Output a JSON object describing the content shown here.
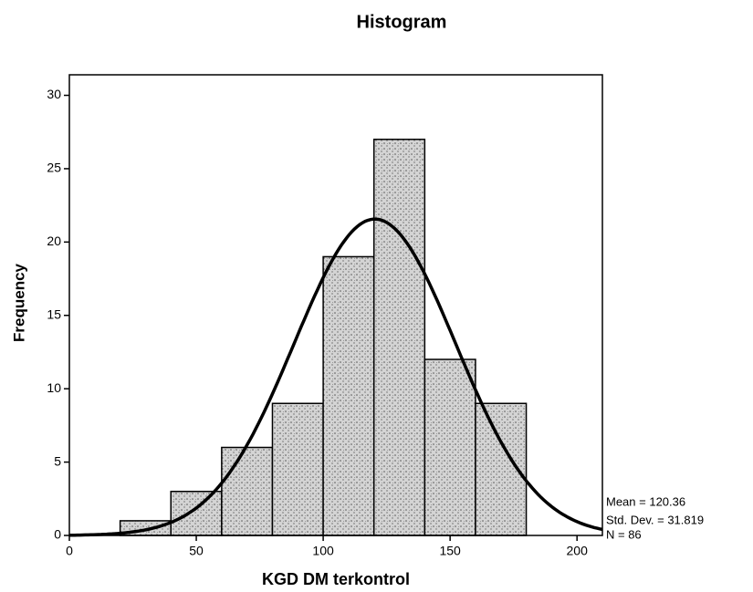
{
  "chart_data": {
    "type": "histogram",
    "title": "Histogram",
    "xlabel": "KGD DM terkontrol",
    "ylabel": "Frequency",
    "bins": [
      20,
      40,
      60,
      80,
      100,
      120,
      140,
      160,
      180
    ],
    "counts": [
      1,
      3,
      6,
      9,
      19,
      27,
      12,
      9
    ],
    "color": "#d4d4d4",
    "curve_color": "#000000",
    "xlim": [
      0,
      210
    ],
    "xticks": [
      0,
      50,
      100,
      150,
      200
    ],
    "ylim": [
      0,
      31.4
    ],
    "yticks": [
      0,
      5,
      10,
      15,
      20,
      25,
      30
    ],
    "mean": 120.36,
    "mean_label": "Mean = 120.36",
    "std_dev": 31.819,
    "std_dev_label": "Std. Dev. = 31.819",
    "n": 86,
    "n_label": "N = 86"
  }
}
